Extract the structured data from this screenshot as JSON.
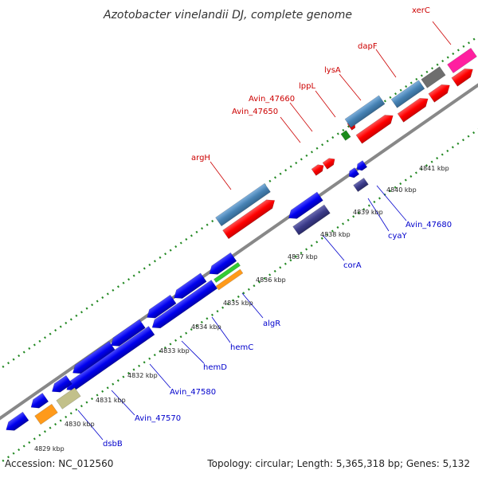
{
  "title": "Azotobacter vinelandii DJ, complete genome",
  "footer": {
    "accession": "Accession: NC_012560",
    "topology": "Topology: circular; Length: 5,365,318 bp; Genes: 5,132"
  },
  "scale_labels": [
    "4829 kbp",
    "4830 kbp",
    "4831 kbp",
    "4832 kbp",
    "4833 kbp",
    "4834 kbp",
    "4835 kbp",
    "4836 kbp",
    "4837 kbp",
    "4838 kbp",
    "4839 kbp",
    "4840 kbp",
    "4841 kbp"
  ],
  "red_labels": [
    "xerC",
    "dapF",
    "lysA",
    "lppL",
    "Avin_47660",
    "Avin_47650",
    "argH"
  ],
  "blue_labels": [
    "Avin_47680",
    "cyaY",
    "corA",
    "algR",
    "hemC",
    "hemD",
    "Avin_47580",
    "Avin_47570",
    "dsbB"
  ],
  "colors": {
    "forward_cds": "#ff0000",
    "reverse_cds": "#0000ee",
    "gene_forward": "#4682b4",
    "gene_reverse": "#3b3b8a",
    "ruler": "#888888",
    "ticks": "#228822",
    "red_label": "#cc0000",
    "blue_label": "#0000cc"
  }
}
